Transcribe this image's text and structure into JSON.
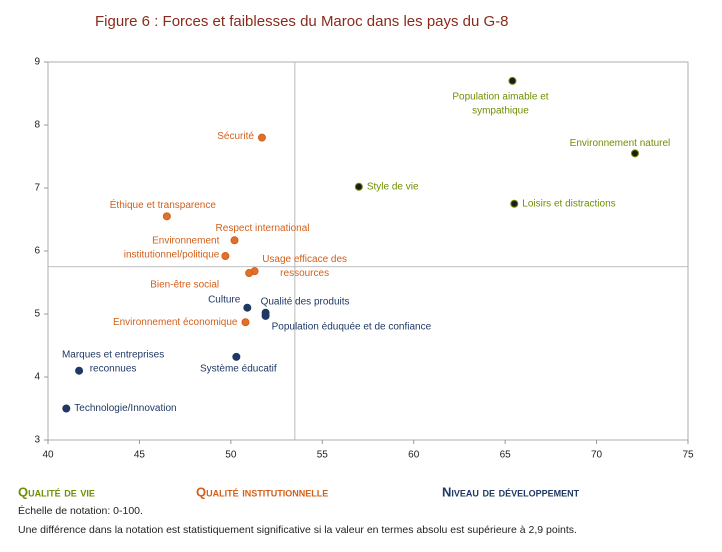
{
  "chart_data": {
    "type": "scatter",
    "title": "Figure 6 : Forces et faiblesses du Maroc dans les pays du G-8",
    "xlim": [
      40,
      75
    ],
    "xticks": [
      40,
      45,
      50,
      55,
      60,
      65,
      70,
      75
    ],
    "ylim": [
      3,
      9
    ],
    "yticks": [
      3,
      4,
      5,
      6,
      7,
      8,
      9
    ],
    "ref_x": 53.5,
    "ref_y": 5.75,
    "series": [
      {
        "name": "Qualité de vie",
        "color": "#6f8f00",
        "marker_color": "#1c1c1c",
        "x": [
          65.4,
          72.1,
          57,
          65.5
        ],
        "values": [
          8.7,
          7.55,
          7.02,
          6.75
        ],
        "labels": [
          [
            "Population aimable et",
            "sympathique"
          ],
          [
            "Environnement naturel"
          ],
          [
            "Style de vie"
          ],
          [
            "Loisirs et distractions"
          ]
        ]
      },
      {
        "name": "Qualité institutionnelle",
        "color": "#d2601a",
        "marker_color": "#e0702a",
        "x": [
          51.7,
          46.5,
          50.2,
          49.7,
          51.3,
          51.0,
          50.8
        ],
        "values": [
          7.8,
          6.55,
          6.17,
          5.92,
          5.68,
          5.65,
          4.87
        ],
        "labels": [
          [
            "Sécurité"
          ],
          [
            "Éthique et transparence"
          ],
          [
            "Respect international"
          ],
          [
            "Environnement",
            "institutionnel/politique"
          ],
          [
            "Usage efficace des",
            "ressources"
          ],
          [
            "Bien-être social"
          ],
          [
            "Environnement économique"
          ]
        ]
      },
      {
        "name": "Niveau de développement",
        "color": "#1f3864",
        "marker_color": "#1f3864",
        "x": [
          50.9,
          51.9,
          51.9,
          50.3,
          41.7,
          41.0
        ],
        "values": [
          5.1,
          5.02,
          4.97,
          4.32,
          4.1,
          3.5
        ],
        "labels": [
          [
            "Culture"
          ],
          [
            "Qualité des produits"
          ],
          [
            "Population éduquée et de confiance"
          ],
          [
            "Système éducatif"
          ],
          [
            "Marques et entreprises",
            "reconnues"
          ],
          [
            "Technologie/Innovation"
          ]
        ]
      }
    ],
    "notes": [
      "Échelle de notation: 0-100.",
      "Une différence dans la notation est statistiquement significative si la valeur en termes absolu est supérieure à 2,9 points."
    ]
  }
}
